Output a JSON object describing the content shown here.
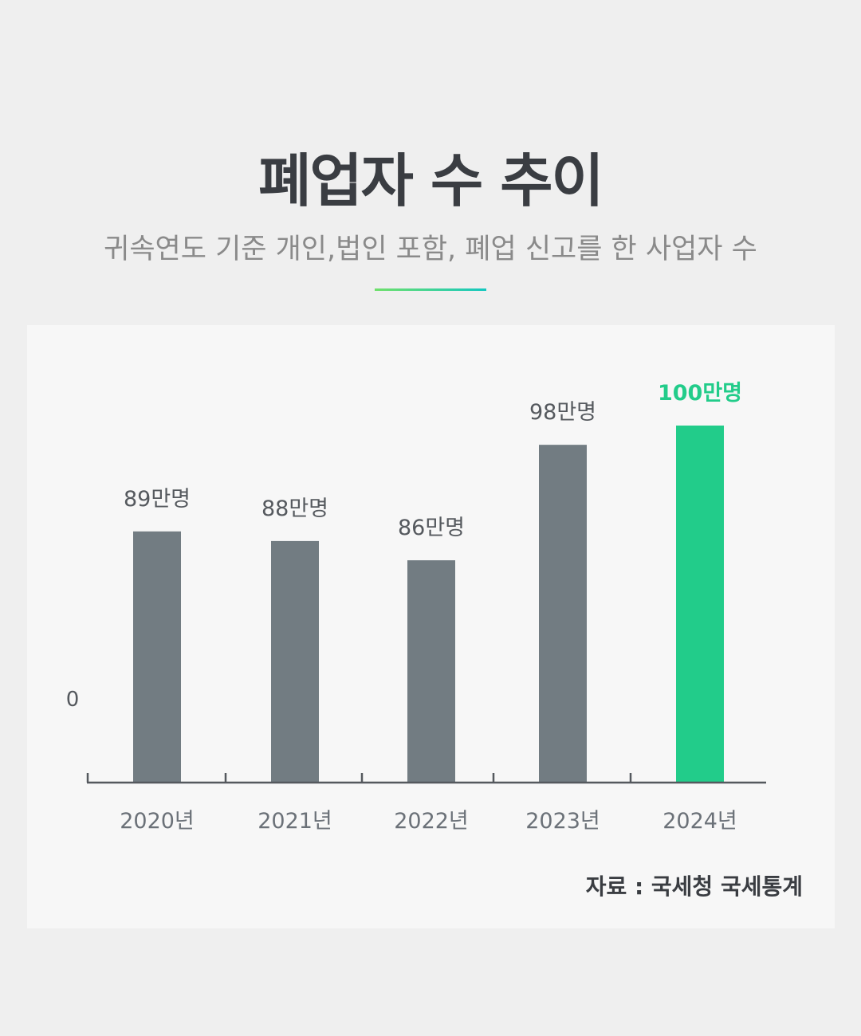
{
  "header": {
    "title": "폐업자 수 추이",
    "subtitle": "귀속연도 기준 개인,법인 포함, 폐업 신고를 한 사업자 수"
  },
  "footer": {
    "source": "자료 : 국세청 국세통계"
  },
  "colors": {
    "bar_default": "#727c82",
    "bar_highlight": "#22cc8a",
    "label_default": "#55595e",
    "label_highlight": "#22cc8a",
    "axis": "#55595e",
    "tick_label": "#6b7178"
  },
  "chart_data": {
    "type": "bar",
    "categories": [
      "2020년",
      "2021년",
      "2022년",
      "2023년",
      "2024년"
    ],
    "values": [
      89,
      88,
      86,
      98,
      100
    ],
    "unit": "만명",
    "data_labels": [
      "89만명",
      "88만명",
      "86만명",
      "98만명",
      "100만명"
    ],
    "highlight_index": 4,
    "y_zero_label": "0",
    "title": "폐업자 수 추이",
    "subtitle": "귀속연도 기준 개인,법인 포함, 폐업 신고를 한 사업자 수",
    "xlabel": "",
    "ylabel": "",
    "grid": false,
    "legend": "none"
  }
}
